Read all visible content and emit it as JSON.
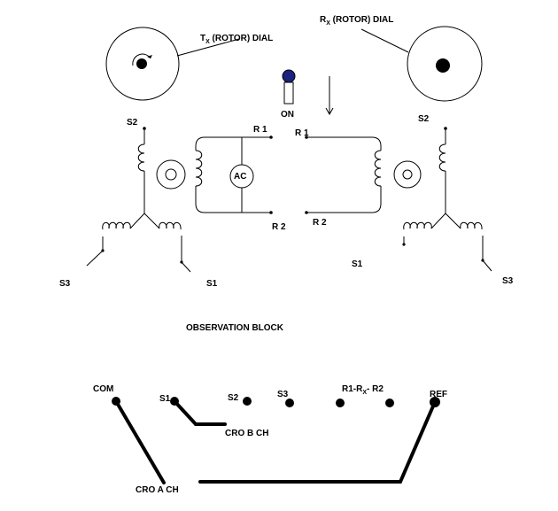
{
  "tx_dial": {
    "prefix": "T",
    "subscript": "X",
    "suffix": " (ROTOR) DIAL"
  },
  "rx_dial": {
    "prefix": "R",
    "subscript": "X",
    "suffix": " (ROTOR) DIAL"
  },
  "switch": {
    "label": "ON",
    "knob_color": "#1a237e"
  },
  "transmitter": {
    "s1": "S1",
    "s2": "S2",
    "s3": "S3"
  },
  "receiver": {
    "s1": "S1",
    "s2": "S2",
    "s3": "S3"
  },
  "rotor_circuit": {
    "r1_left": "R 1",
    "r2_left": "R 2",
    "r1_right": "R 1",
    "r2_right": "R 2",
    "ac": "AC"
  },
  "observation": {
    "title": "OBSERVATION BLOCK",
    "com": "COM",
    "s1": "S1",
    "s2": "S2",
    "s3": "S3",
    "r_prefix": "R1-R",
    "r_subscript": "X",
    "r_suffix": "- R2",
    "ref": "REF",
    "cro_a": "CRO A CH",
    "cro_b": "CRO B CH"
  }
}
